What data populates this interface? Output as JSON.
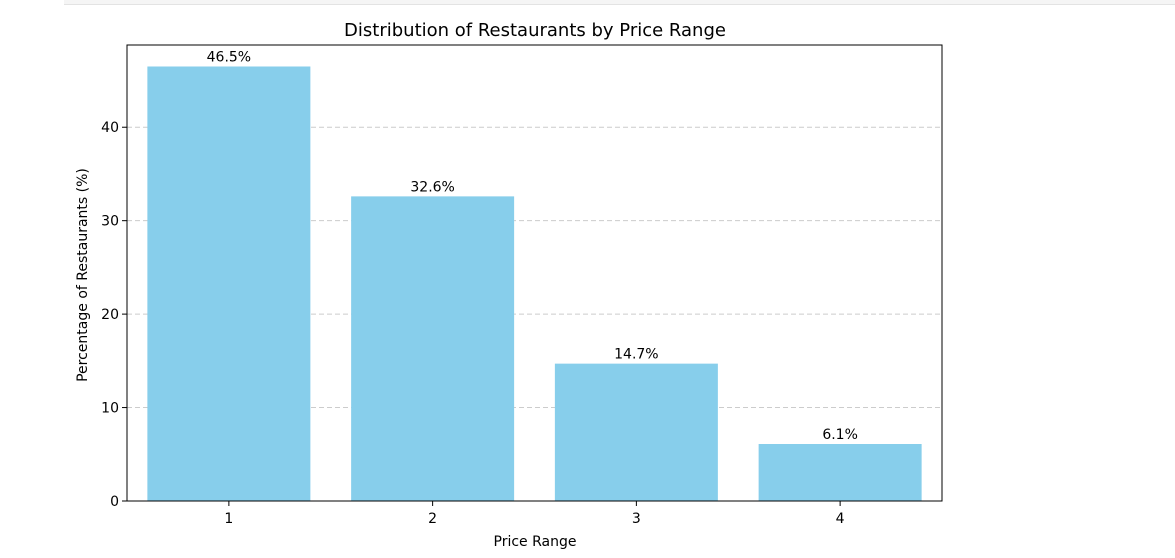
{
  "chart_data": {
    "type": "bar",
    "title": "Distribution of Restaurants by Price Range",
    "xlabel": "Price Range",
    "ylabel": "Percentage of Restaurants (%)",
    "categories": [
      "1",
      "2",
      "3",
      "4"
    ],
    "values": [
      46.5,
      32.6,
      14.7,
      6.1
    ],
    "value_labels": [
      "46.5%",
      "32.6%",
      "14.7%",
      "6.1%"
    ],
    "yticks": [
      0,
      10,
      20,
      30,
      40
    ],
    "ylim": [
      0,
      48.8
    ],
    "grid": "y-dashed",
    "legend": "none",
    "colors": {
      "bar": "#87ceeb",
      "grid": "#cccccc",
      "axis": "#000000"
    }
  }
}
